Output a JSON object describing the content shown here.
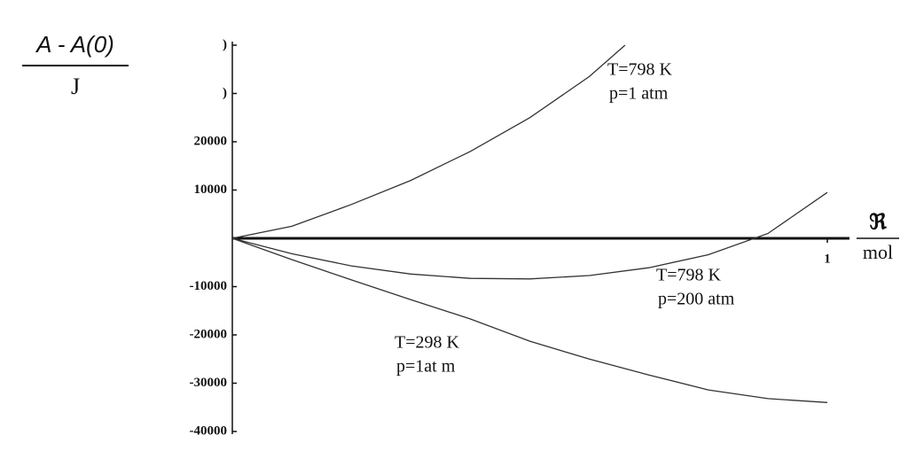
{
  "chart_data": {
    "type": "line",
    "y_label_numerator": "A - A(0)",
    "y_label_denominator": "J",
    "x_label_numerator": "ℜ",
    "x_label_denominator": "mol",
    "xlim": [
      0,
      1
    ],
    "xticks": [
      1
    ],
    "ylim": [
      -40000,
      40000
    ],
    "yticks": [
      -40000,
      -30000,
      -20000,
      -10000,
      10000,
      20000,
      {
        "value": 30000,
        "label": ")"
      },
      {
        "value": 40000,
        "label": ")"
      }
    ],
    "series": [
      {
        "color": "#333333",
        "x": [
          0,
          0.1,
          0.2,
          0.3,
          0.4,
          0.5,
          0.6,
          0.66
        ],
        "values": [
          0,
          2500,
          7000,
          12000,
          18000,
          25000,
          33500,
          40000
        ]
      },
      {
        "color": "#333333",
        "x": [
          0,
          0.1,
          0.2,
          0.3,
          0.4,
          0.5,
          0.6,
          0.7,
          0.8,
          0.9,
          1.0
        ],
        "values": [
          0,
          -3200,
          -5700,
          -7400,
          -8300,
          -8400,
          -7700,
          -6100,
          -3400,
          1000,
          9500
        ]
      },
      {
        "color": "#333333",
        "x": [
          0,
          0.1,
          0.2,
          0.3,
          0.4,
          0.5,
          0.6,
          0.7,
          0.8,
          0.9,
          1.0
        ],
        "values": [
          0,
          -4400,
          -8600,
          -12700,
          -16700,
          -21300,
          -25000,
          -28300,
          -31400,
          -33200,
          -34000
        ]
      }
    ],
    "annotations": [
      [
        "T=798 K",
        "p=1 atm"
      ],
      [
        "T=798 K",
        "p=200 atm"
      ],
      [
        "T=298 K",
        "p=1at m"
      ]
    ]
  }
}
